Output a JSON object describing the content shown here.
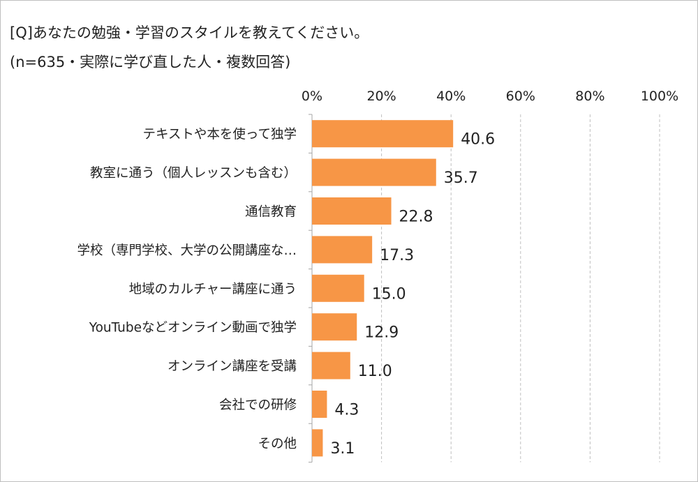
{
  "chart_data": {
    "type": "bar",
    "orientation": "horizontal",
    "title": "[Q]あなたの勉強・学習のスタイルを教えてください。",
    "subtitle": "(n=635・実際に学び直した人・複数回答)",
    "categories": [
      "テキストや本を使って独学",
      "教室に通う（個人レッスンも含む）",
      "通信教育",
      "学校（専門学校、大学の公開講座な…",
      "地域のカルチャー講座に通う",
      "YouTubeなどオンライン動画で独学",
      "オンライン講座を受講",
      "会社での研修",
      "その他"
    ],
    "values": [
      40.6,
      35.7,
      22.8,
      17.3,
      15.0,
      12.9,
      11.0,
      4.3,
      3.1
    ],
    "value_labels": [
      "40.6",
      "35.7",
      "22.8",
      "17.3",
      "15.0",
      "12.9",
      "11.0",
      "4.3",
      "3.1"
    ],
    "xlim": [
      0,
      100
    ],
    "xticks": [
      0,
      20,
      40,
      60,
      80,
      100
    ],
    "xtick_labels": [
      "0%",
      "20%",
      "40%",
      "60%",
      "80%",
      "100%"
    ],
    "xlabel": "",
    "ylabel": "",
    "grid": true,
    "bar_color": "#f79646",
    "grid_color": "#bfbfbf"
  }
}
